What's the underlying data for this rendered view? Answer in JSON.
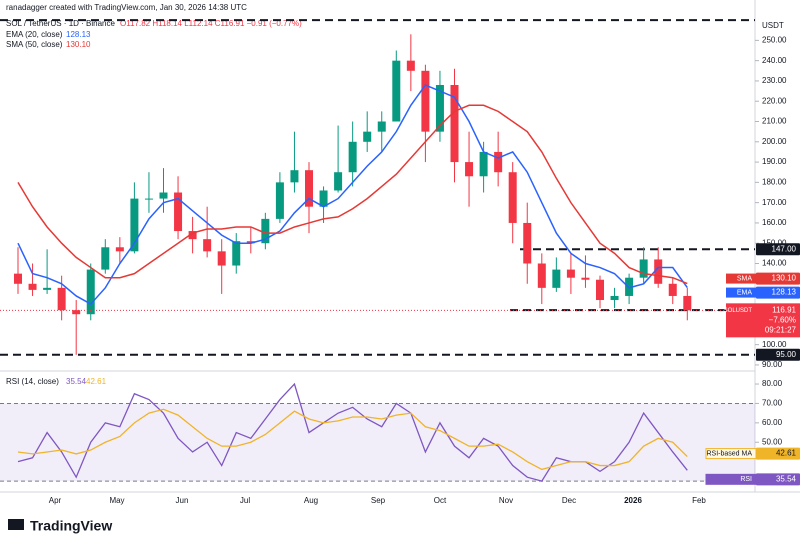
{
  "header": {
    "credit": "ranadagger created with TradingView.com, Jan 30, 2026 14:38 UTC",
    "symbol": "SOL / TetherUS · 1D · Binance",
    "ohlc_text": "O117.82 H118.14 L112.14 C116.91 −0.91 (−0.77%)",
    "currency": "USDT"
  },
  "chart_data": [
    {
      "type": "candlestick",
      "title": "SOL / TetherUS",
      "ylim": [
        87.5,
        263
      ],
      "yticks": [
        {
          "value": 90,
          "label": "90.00"
        },
        {
          "value": 100,
          "label": "100.00"
        },
        {
          "value": 140,
          "label": "140.00"
        },
        {
          "value": 150,
          "label": "150.00"
        },
        {
          "value": 160,
          "label": "160.00"
        },
        {
          "value": 170,
          "label": "170.00"
        },
        {
          "value": 180,
          "label": "180.00"
        },
        {
          "value": 190,
          "label": "190.00"
        },
        {
          "value": 200,
          "label": "200.00"
        },
        {
          "value": 210,
          "label": "210.00"
        },
        {
          "value": 220,
          "label": "220.00"
        },
        {
          "value": 230,
          "label": "230.00"
        },
        {
          "value": 240,
          "label": "240.00"
        },
        {
          "value": 250,
          "label": "250.00"
        }
      ],
      "up_color": "#089981",
      "down_color": "#f23645",
      "open": [
        135,
        130,
        127,
        128,
        117,
        115,
        137,
        148,
        146,
        172,
        172,
        175,
        156,
        152,
        146,
        139,
        151,
        150,
        162,
        180,
        186,
        168,
        176,
        185,
        200,
        205,
        210,
        240,
        235,
        205,
        228,
        190,
        183,
        195,
        185,
        160,
        140,
        128,
        137,
        133,
        132,
        122,
        124,
        133,
        142,
        130,
        124
      ],
      "high": [
        148,
        140,
        147,
        134,
        122,
        140,
        152,
        153,
        180,
        185,
        187,
        183,
        163,
        168,
        152,
        155,
        158,
        165,
        185,
        205,
        190,
        178,
        208,
        210,
        215,
        215,
        245,
        253,
        238,
        235,
        236,
        205,
        200,
        205,
        190,
        170,
        145,
        143,
        145,
        144,
        134,
        128,
        135,
        148,
        148,
        133,
        128
      ],
      "low": [
        125,
        124,
        125,
        112,
        95,
        112,
        135,
        140,
        145,
        165,
        165,
        152,
        145,
        143,
        125,
        135,
        145,
        147,
        160,
        175,
        155,
        160,
        175,
        178,
        195,
        195,
        210,
        225,
        190,
        200,
        180,
        168,
        175,
        178,
        150,
        130,
        120,
        126,
        125,
        128,
        118,
        118,
        120,
        130,
        128,
        120,
        112
      ],
      "close": [
        130,
        127,
        128,
        117,
        115,
        137,
        148,
        146,
        172,
        172,
        175,
        156,
        152,
        146,
        139,
        151,
        150,
        162,
        180,
        186,
        168,
        176,
        185,
        200,
        205,
        210,
        240,
        235,
        205,
        228,
        190,
        183,
        195,
        185,
        160,
        140,
        128,
        137,
        133,
        132,
        122,
        124,
        133,
        142,
        130,
        124,
        116.91
      ],
      "series": [
        {
          "name": "EMA (20, close)",
          "color": "#2962ff",
          "badge": "EMA",
          "value_label": "128.13",
          "values": [
            150,
            135,
            133,
            130,
            124,
            120,
            128,
            140,
            150,
            162,
            170,
            172,
            166,
            160,
            154,
            150,
            150,
            152,
            156,
            165,
            172,
            168,
            172,
            180,
            188,
            195,
            205,
            218,
            228,
            225,
            222,
            210,
            195,
            192,
            195,
            185,
            170,
            155,
            145,
            140,
            138,
            135,
            128,
            130,
            138,
            138,
            128.13
          ]
        },
        {
          "name": "SMA (50, close)",
          "color": "#e53935",
          "badge": "SMA",
          "value_label": "130.10",
          "values": [
            180,
            168,
            158,
            150,
            143,
            138,
            133,
            133,
            135,
            140,
            145,
            150,
            155,
            157,
            157,
            158,
            158,
            155,
            155,
            158,
            160,
            162,
            163,
            167,
            172,
            178,
            184,
            192,
            200,
            208,
            215,
            218,
            218,
            215,
            210,
            205,
            195,
            182,
            170,
            160,
            150,
            145,
            138,
            135,
            134,
            133,
            130.1
          ]
        }
      ],
      "levels": [
        {
          "value": 260
        },
        {
          "value": 147,
          "label": "147.00"
        },
        {
          "value": 117,
          "label": "117.00"
        },
        {
          "value": 95,
          "label": "95.00"
        }
      ],
      "last_badge": {
        "symbol": "SOLUSDT",
        "price": "116.91",
        "change": "−7.60%",
        "countdown": "09:21:27"
      },
      "xticks": [
        "Apr",
        "May",
        "Jun",
        "Jul",
        "Aug",
        "Sep",
        "Oct",
        "Nov",
        "Dec",
        "2026",
        "Feb"
      ]
    },
    {
      "type": "line",
      "title": "RSI (14, close)",
      "ylim": [
        25.4,
        86.2
      ],
      "band": [
        30,
        70
      ],
      "yticks": [
        {
          "value": 30,
          "label": "30.00"
        },
        {
          "value": 50,
          "label": "50.00"
        },
        {
          "value": 60,
          "label": "60.00"
        },
        {
          "value": 70,
          "label": "70.00"
        },
        {
          "value": 80,
          "label": "80.00"
        }
      ],
      "series": [
        {
          "name": "RSI",
          "color": "#7e57c2",
          "value_label": "35.54",
          "values": [
            40,
            42,
            55,
            45,
            32,
            50,
            60,
            58,
            75,
            72,
            65,
            52,
            45,
            50,
            38,
            55,
            52,
            62,
            72,
            80,
            55,
            60,
            65,
            68,
            62,
            58,
            70,
            65,
            45,
            60,
            48,
            42,
            52,
            48,
            38,
            32,
            30,
            42,
            40,
            40,
            35,
            40,
            50,
            65,
            55,
            45,
            35.54
          ]
        },
        {
          "name": "RSI-based MA",
          "color": "#f0b429",
          "value_label": "42.61",
          "values": [
            45,
            44,
            45,
            46,
            44,
            46,
            50,
            53,
            60,
            65,
            67,
            64,
            58,
            52,
            48,
            48,
            50,
            54,
            60,
            66,
            62,
            60,
            61,
            63,
            63,
            62,
            64,
            65,
            58,
            56,
            52,
            48,
            48,
            49,
            45,
            40,
            36,
            38,
            40,
            40,
            38,
            38,
            40,
            48,
            52,
            50,
            42.61
          ]
        }
      ]
    }
  ],
  "footer": {
    "brand": "TradingView"
  }
}
